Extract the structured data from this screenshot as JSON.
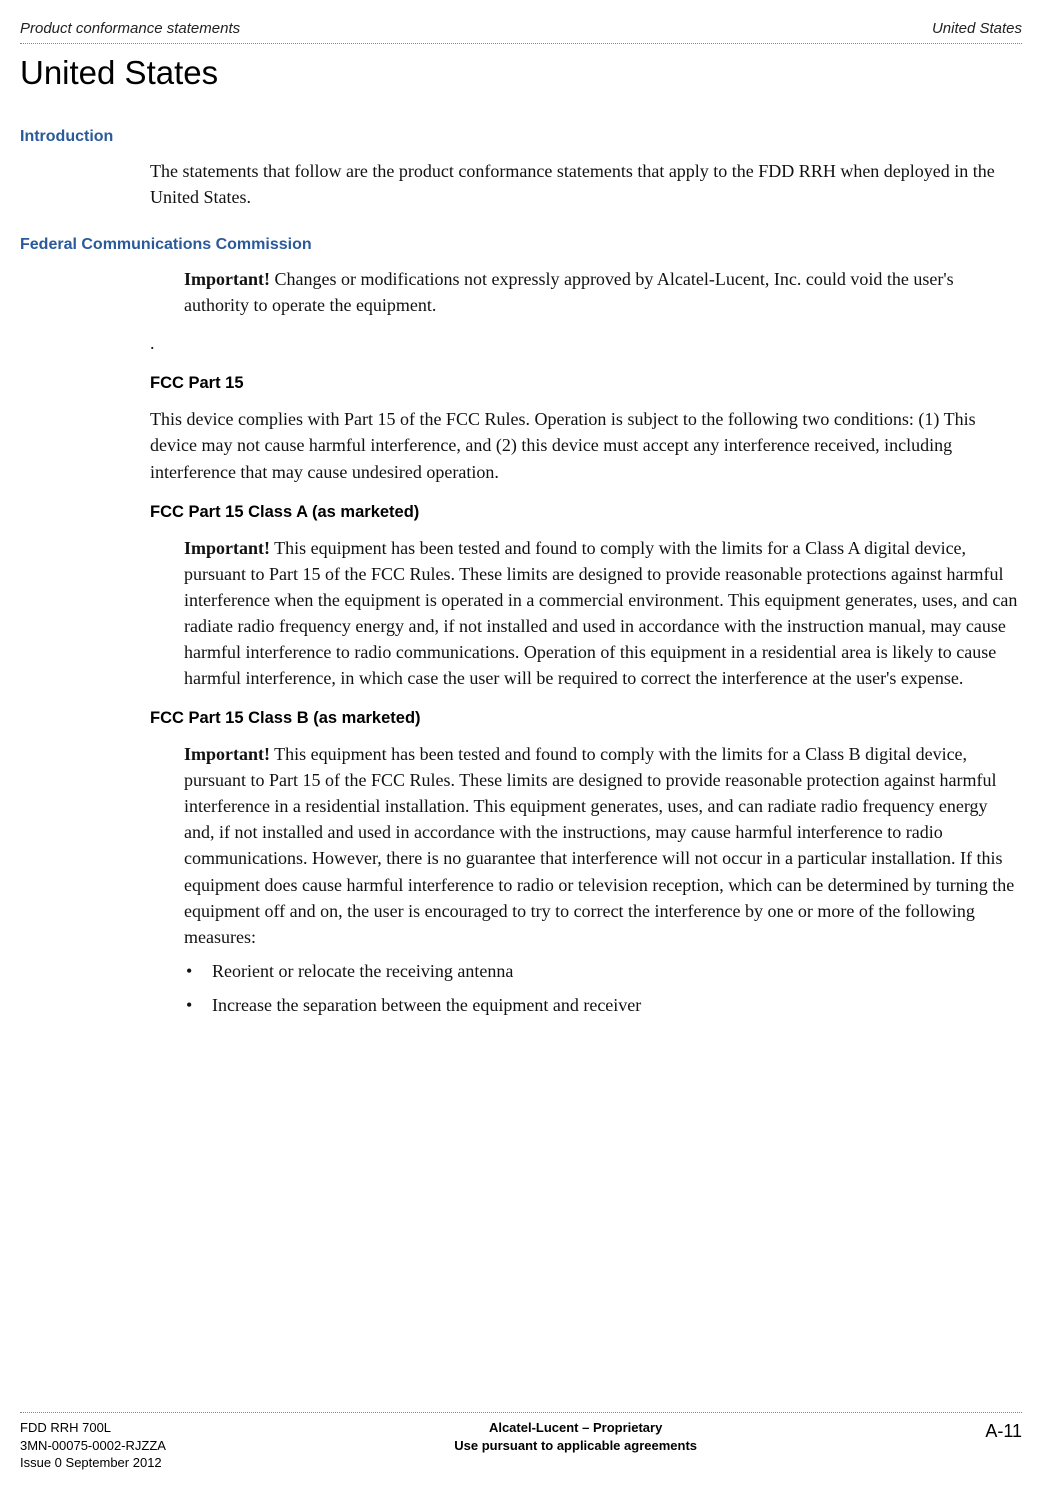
{
  "header": {
    "left": "Product conformance statements",
    "right": "United States"
  },
  "main_title": "United States",
  "sections": {
    "intro": {
      "head": "Introduction",
      "text": "The statements that follow are the product conformance statements that apply to the FDD RRH when deployed in the United States."
    },
    "fcc": {
      "head": "Federal Communications Commission",
      "important_label": "Important!",
      "important_text": " Changes or modifications not expressly approved by Alcatel-Lucent, Inc. could void the user's authority to operate the equipment.",
      "dot": ".",
      "part15_head": "FCC Part 15",
      "part15_text": "This device complies with Part 15 of the FCC Rules. Operation is subject to the following two conditions: (1) This device may not cause harmful interference, and (2) this device must accept any interference received, including interference that may cause undesired operation.",
      "classA_head": "FCC Part 15 Class A (as marketed)",
      "classA_important_label": "Important!",
      "classA_text": " This equipment has been tested and found to comply with the limits for a Class A digital device, pursuant to Part 15 of the FCC Rules. These limits are designed to provide reasonable protections against harmful interference when the equipment is operated in a commercial environment. This equipment generates, uses, and can radiate radio frequency energy and, if not installed and used in accordance with the instruction manual, may cause harmful interference to radio communications. Operation of this equipment in a residential area is likely to cause harmful interference, in which case the user will be required to correct the interference at the user's expense.",
      "classB_head": "FCC Part 15 Class B (as marketed)",
      "classB_important_label": "Important!",
      "classB_text": " This equipment has been tested and found to comply with the limits for a Class B digital device, pursuant to Part 15 of the FCC Rules. These limits are designed to provide reasonable protection against harmful interference in a residential installation. This equipment generates, uses, and can radiate radio frequency energy and, if not installed and used in accordance with the instructions, may cause harmful interference to radio communications. However, there is no guarantee that interference will not occur in a particular installation. If this equipment does cause harmful interference to radio or television reception, which can be determined by turning the equipment off and on, the user is encouraged to try to correct the interference by one or more of the following measures:",
      "bullets": [
        "Reorient or relocate the receiving antenna",
        "Increase the separation between the equipment and receiver"
      ]
    }
  },
  "footer": {
    "left_line1": "FDD RRH 700L",
    "left_line2": "3MN-00075-0002-RJZZA",
    "left_line3": "Issue 0   September 2012",
    "center_line1": "Alcatel-Lucent – Proprietary",
    "center_line2": "Use pursuant to applicable agreements",
    "right": "A-11"
  }
}
